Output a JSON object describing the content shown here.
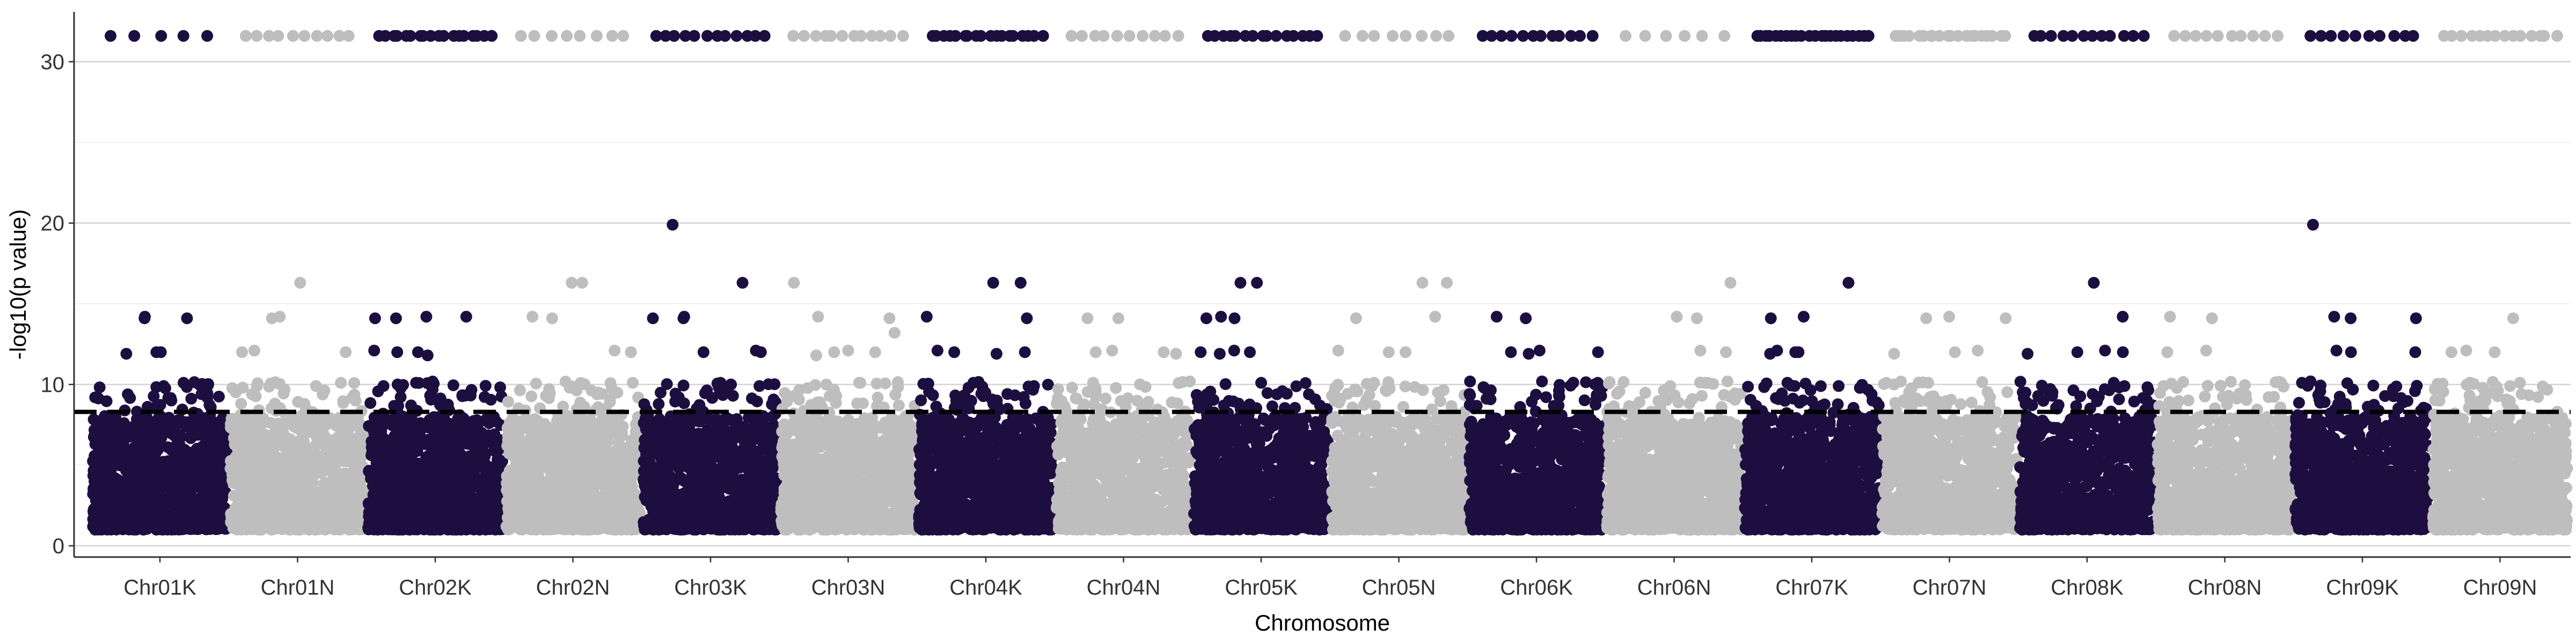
{
  "chart_data": {
    "type": "scatter",
    "subtype": "manhattan",
    "title": "",
    "xlabel": "Chromosome",
    "ylabel": "-log10(p value)",
    "ylim": [
      0,
      33
    ],
    "yticks": [
      "0",
      "10",
      "20",
      "30"
    ],
    "categories": [
      "Chr01K",
      "Chr01N",
      "Chr02K",
      "Chr02N",
      "Chr03K",
      "Chr03N",
      "Chr04K",
      "Chr04N",
      "Chr05K",
      "Chr05N",
      "Chr06K",
      "Chr06N",
      "Chr07K",
      "Chr07N",
      "Chr08K",
      "Chr08N",
      "Chr09K",
      "Chr09N"
    ],
    "point_colors": [
      "#1c0f40",
      "#bebebe"
    ],
    "threshold": {
      "value": 8.3,
      "style": "dashed",
      "color": "#000000"
    },
    "grid": {
      "major_y": true,
      "minor_y": true,
      "x": false
    },
    "bulk_range_per_chromosome": [
      1,
      8
    ],
    "cap_value": 31.6,
    "series": [
      {
        "name": "Chr01K",
        "highlights": [
          14.1,
          14.2,
          12.0,
          11.9,
          10.1,
          9.9,
          14.1,
          12.0
        ],
        "capped_hits": 5
      },
      {
        "name": "Chr01N",
        "highlights": [
          16.3,
          14.1,
          12.0,
          12.1,
          10.1,
          14.2,
          9.9,
          12.0,
          10.1
        ],
        "capped_hits": 10
      },
      {
        "name": "Chr02K",
        "highlights": [
          14.1,
          14.2,
          14.1,
          12.0,
          12.1,
          11.8,
          10.1,
          9.9,
          12.0,
          14.2
        ],
        "capped_hits": 18
      },
      {
        "name": "Chr02N",
        "highlights": [
          16.3,
          16.3,
          14.2,
          12.0,
          12.1,
          10.1,
          14.1,
          12.0,
          9.8
        ],
        "capped_hits": 8
      },
      {
        "name": "Chr03K",
        "highlights": [
          16.3,
          19.9,
          14.1,
          14.2,
          12.0,
          12.1,
          10.1,
          14.1,
          12.0,
          9.9
        ],
        "capped_hits": 12
      },
      {
        "name": "Chr03N",
        "highlights": [
          16.3,
          14.2,
          12.1,
          12.0,
          13.2,
          14.1,
          12.0,
          10.1,
          11.8
        ],
        "capped_hits": 12
      },
      {
        "name": "Chr04K",
        "highlights": [
          16.3,
          16.3,
          14.2,
          14.1,
          12.0,
          12.1,
          10.1,
          9.9,
          12.0,
          11.9
        ],
        "capped_hits": 18
      },
      {
        "name": "Chr04N",
        "highlights": [
          14.1,
          12.0,
          12.1,
          14.1,
          12.0,
          10.1,
          9.8,
          11.9
        ],
        "capped_hits": 10
      },
      {
        "name": "Chr05K",
        "highlights": [
          16.3,
          16.3,
          14.2,
          14.1,
          12.0,
          12.1,
          10.1,
          14.1,
          12.0,
          11.9
        ],
        "capped_hits": 15
      },
      {
        "name": "Chr05N",
        "highlights": [
          16.3,
          16.3,
          14.2,
          14.1,
          12.0,
          12.1,
          10.1,
          12.0,
          9.9
        ],
        "capped_hits": 8
      },
      {
        "name": "Chr06K",
        "highlights": [
          14.1,
          14.2,
          12.0,
          12.1,
          10.1,
          11.9,
          12.0
        ],
        "capped_hits": 12
      },
      {
        "name": "Chr06N",
        "highlights": [
          16.3,
          14.2,
          14.1,
          12.0,
          12.1,
          10.1,
          9.9
        ],
        "capped_hits": 6
      },
      {
        "name": "Chr07K",
        "highlights": [
          16.3,
          16.3,
          14.2,
          14.1,
          12.0,
          12.1,
          10.1,
          12.0,
          11.9,
          9.9
        ],
        "capped_hits": 22
      },
      {
        "name": "Chr07N",
        "highlights": [
          14.1,
          14.2,
          12.0,
          12.1,
          10.1,
          14.1,
          11.9
        ],
        "capped_hits": 20
      },
      {
        "name": "Chr08K",
        "highlights": [
          16.3,
          14.2,
          12.0,
          12.1,
          10.1,
          12.0,
          11.9
        ],
        "capped_hits": 12
      },
      {
        "name": "Chr08N",
        "highlights": [
          14.1,
          14.2,
          12.0,
          12.1,
          10.1,
          9.9
        ],
        "capped_hits": 10
      },
      {
        "name": "Chr09K",
        "highlights": [
          19.9,
          14.1,
          14.2,
          12.0,
          12.1,
          10.1,
          12.0,
          14.1
        ],
        "capped_hits": 10
      },
      {
        "name": "Chr09N",
        "highlights": [
          14.1,
          12.0,
          12.1,
          10.1,
          12.0,
          9.9
        ],
        "capped_hits": 14
      }
    ]
  }
}
